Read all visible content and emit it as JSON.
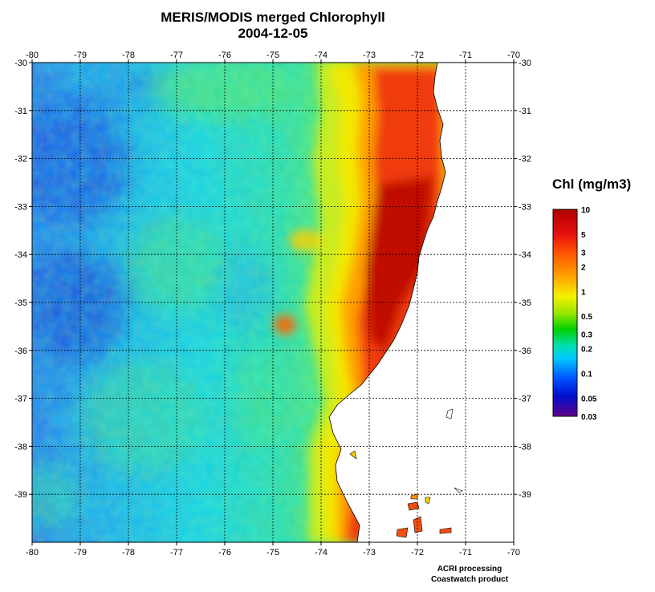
{
  "title": "MERIS/MODIS merged Chlorophyll",
  "date": "2004-12-05",
  "colorbar": {
    "title": "Chl (mg/m3)",
    "labels": [
      "10",
      "5",
      "3",
      "2",
      "1",
      "0.5",
      "0.3",
      "0.2",
      "0.1",
      "0.05",
      "0.03"
    ],
    "values": [
      10,
      5,
      3,
      2,
      1,
      0.5,
      0.3,
      0.2,
      0.1,
      0.05,
      0.03
    ],
    "range": [
      0.03,
      10
    ],
    "scale": "log"
  },
  "map": {
    "lon_range": [
      -80,
      -70
    ],
    "lat_range": [
      -40,
      -30
    ],
    "lon_ticks": [
      "-80",
      "-79",
      "-78",
      "-77",
      "-76",
      "-75",
      "-74",
      "-73",
      "-72",
      "-71",
      "-70"
    ],
    "lat_ticks": [
      "-30",
      "-31",
      "-32",
      "-33",
      "-34",
      "-35",
      "-36",
      "-37",
      "-38",
      "-39"
    ],
    "grid": "dotted"
  },
  "credits": {
    "line1": "ACRI processing",
    "line2": "Coastwatch product"
  }
}
